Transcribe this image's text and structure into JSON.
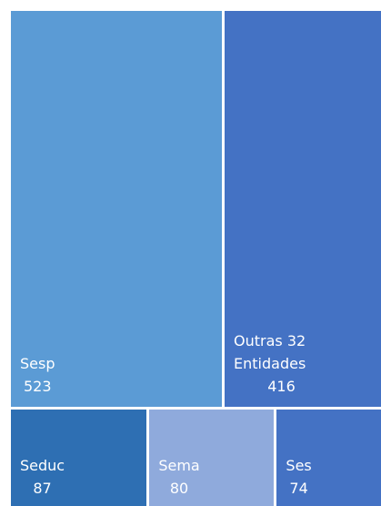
{
  "chart_data": {
    "type": "treemap",
    "categories": [
      "Sesp",
      "Outras 32 Entidades",
      "Seduc",
      "Sema",
      "Ses"
    ],
    "values": [
      523,
      416,
      87,
      80,
      74
    ],
    "colors": [
      "#5b9bd5",
      "#4472c4",
      "#2e6fb3",
      "#8faadc",
      "#4472c4"
    ]
  }
}
